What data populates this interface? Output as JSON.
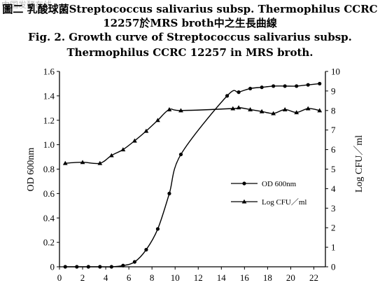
{
  "watermark": "中国发酵在线",
  "title": {
    "line1": "圖二 乳酸球菌Streptococcus salivarius subsp. Thermophilus CCRC",
    "line2": "12257於MRS broth中之生長曲線",
    "line3": "Fig. 2. Growth curve of Streptococcus salivarius subsp.",
    "line4": "Thermophilus CCRC 12257 in MRS broth."
  },
  "chart_data": {
    "type": "line",
    "title": "Fig. 2. Growth curve of Streptococcus salivarius subsp. Thermophilus CCRC 12257 in MRS broth.",
    "xlabel": "",
    "ylabel": "OD 600nm",
    "y2label": "Log CFU／ml",
    "xlim": [
      0,
      23
    ],
    "ylim": [
      0,
      1.6
    ],
    "y2lim": [
      0,
      10
    ],
    "x_ticks": [
      0,
      2,
      4,
      6,
      8,
      10,
      12,
      14,
      16,
      18,
      20,
      22
    ],
    "y_ticks": [
      "0",
      "0.2",
      "0.4",
      "0.6",
      "0.8",
      "1.0",
      "1.2",
      "1.4",
      "1.6"
    ],
    "y2_ticks": [
      "0",
      "1",
      "2",
      "3",
      "4",
      "5",
      "6",
      "7",
      "8",
      "9",
      "10"
    ],
    "legend_position": "center-right",
    "grid": false,
    "series": [
      {
        "name": "OD 600nm",
        "axis": "left",
        "marker": "circle",
        "x": [
          0.5,
          1.5,
          2.5,
          3.5,
          4.5,
          5.5,
          6.5,
          7.5,
          8.5,
          9.5,
          10.5,
          14.5,
          15.5,
          16.5,
          17.5,
          18.5,
          19.5,
          20.5,
          21.5,
          22.5
        ],
        "values": [
          0.0,
          0.0,
          0.0,
          0.0,
          0.0,
          0.01,
          0.04,
          0.14,
          0.31,
          0.6,
          0.92,
          1.4,
          1.43,
          1.46,
          1.47,
          1.48,
          1.48,
          1.48,
          1.49,
          1.5
        ]
      },
      {
        "name": "Log CFU／ml",
        "axis": "right",
        "marker": "triangle",
        "x": [
          0.5,
          2.0,
          3.5,
          4.5,
          5.5,
          6.5,
          7.5,
          8.5,
          9.5,
          10.5,
          15.0,
          15.5,
          16.5,
          17.5,
          18.5,
          19.5,
          20.5,
          21.5,
          22.5
        ],
        "values": [
          5.3,
          5.35,
          5.3,
          5.7,
          6.0,
          6.45,
          6.95,
          7.5,
          8.05,
          8.0,
          8.1,
          8.15,
          8.05,
          7.95,
          7.85,
          8.05,
          7.9,
          8.1,
          8.0
        ]
      }
    ]
  }
}
